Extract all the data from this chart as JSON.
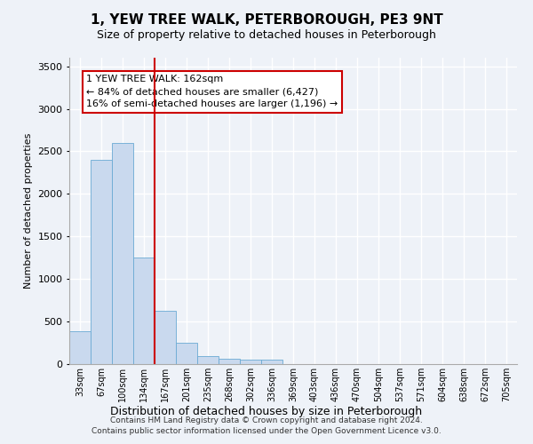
{
  "title": "1, YEW TREE WALK, PETERBOROUGH, PE3 9NT",
  "subtitle": "Size of property relative to detached houses in Peterborough",
  "xlabel": "Distribution of detached houses by size in Peterborough",
  "ylabel": "Number of detached properties",
  "bar_labels": [
    "33sqm",
    "67sqm",
    "100sqm",
    "134sqm",
    "167sqm",
    "201sqm",
    "235sqm",
    "268sqm",
    "302sqm",
    "336sqm",
    "369sqm",
    "403sqm",
    "436sqm",
    "470sqm",
    "504sqm",
    "537sqm",
    "571sqm",
    "604sqm",
    "638sqm",
    "672sqm",
    "705sqm"
  ],
  "bar_values": [
    390,
    2400,
    2600,
    1250,
    630,
    250,
    90,
    60,
    55,
    50,
    0,
    0,
    0,
    0,
    0,
    0,
    0,
    0,
    0,
    0,
    0
  ],
  "bar_color": "#c9d9ee",
  "bar_edgecolor": "#6aaad4",
  "vline_color": "#cc0000",
  "vline_pos": 3.5,
  "annotation_text": "1 YEW TREE WALK: 162sqm\n← 84% of detached houses are smaller (6,427)\n16% of semi-detached houses are larger (1,196) →",
  "annotation_box_facecolor": "#ffffff",
  "annotation_box_edgecolor": "#cc0000",
  "ylim": [
    0,
    3600
  ],
  "yticks": [
    0,
    500,
    1000,
    1500,
    2000,
    2500,
    3000,
    3500
  ],
  "footer": "Contains HM Land Registry data © Crown copyright and database right 2024.\nContains public sector information licensed under the Open Government Licence v3.0.",
  "bg_color": "#eef2f8",
  "plot_bg_color": "#eef2f8",
  "grid_color": "#ffffff"
}
